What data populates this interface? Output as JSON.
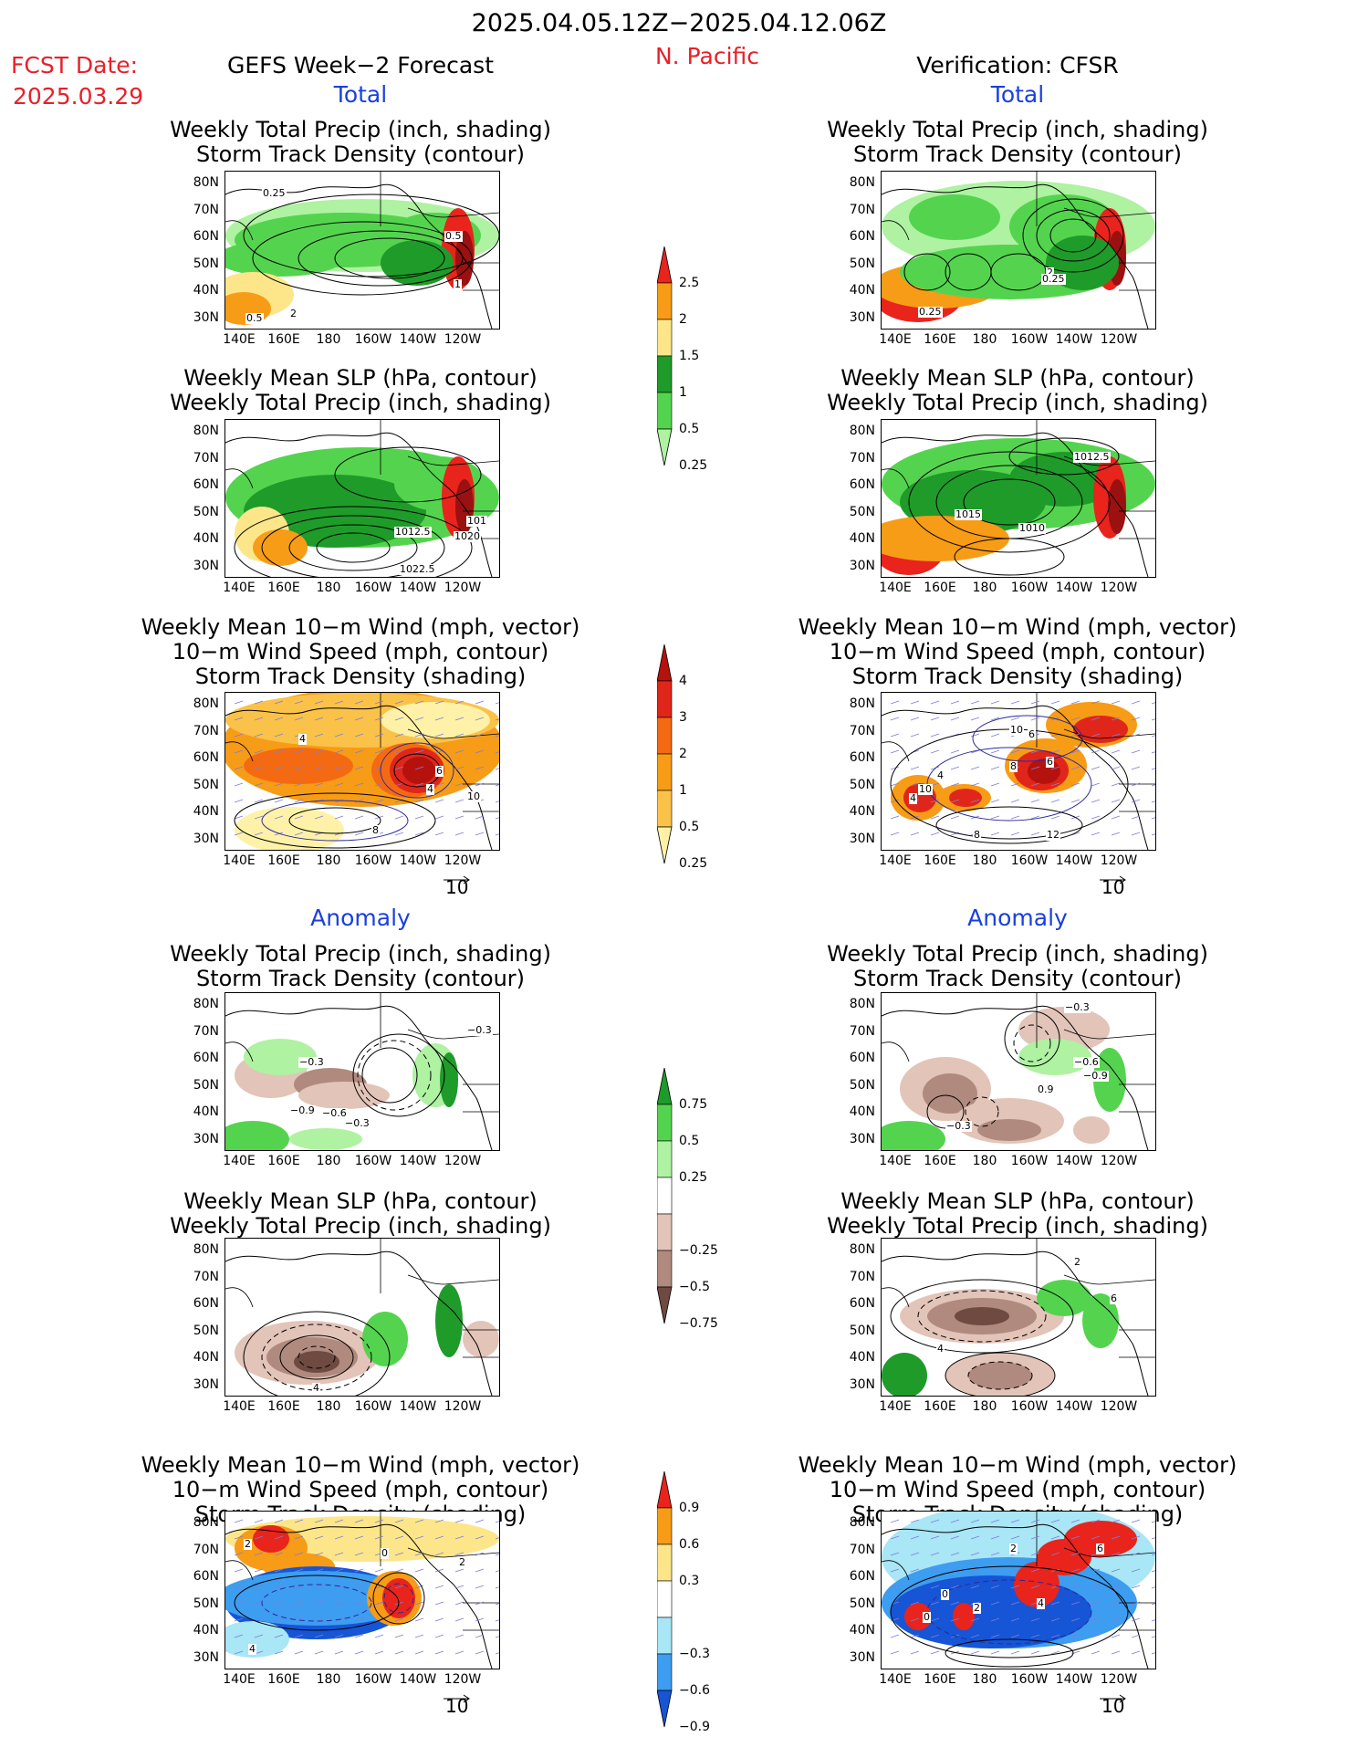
{
  "header": {
    "date_range": "2025.04.05.12Z−2025.04.12.06Z",
    "region": "N. Pacific",
    "fcst_label": "FCST Date:",
    "fcst_date": "2025.03.29",
    "left_model": "GEFS Week−2 Forecast",
    "right_model": "Verification: CFSR"
  },
  "sections": {
    "total": "Total",
    "anomaly": "Anomaly"
  },
  "axes": {
    "lat_ticks": [
      "80N",
      "70N",
      "60N",
      "50N",
      "40N",
      "30N"
    ],
    "lon_ticks": [
      "140E",
      "160E",
      "180",
      "160W",
      "140W",
      "120W"
    ]
  },
  "titles": {
    "precip_storm": [
      "Weekly Total Precip (inch, shading)",
      "Storm Track Density (contour)"
    ],
    "slp_precip": [
      "Weekly Mean SLP (hPa, contour)",
      "Weekly Total Precip (inch, shading)"
    ],
    "wind_storm": [
      "Weekly Mean 10−m Wind (mph, vector)",
      "10−m Wind Speed (mph, contour)",
      "Storm Track Density (shading)"
    ]
  },
  "vector_ref": "10",
  "colorbars": [
    {
      "name": "precip-total",
      "labels": [
        "2.5",
        "2",
        "1.5",
        "1",
        "0.5",
        "0.25"
      ],
      "colors": [
        "#e8241c",
        "#f79c16",
        "#fde68a",
        "#1f9b2a",
        "#54d44e",
        "#aef2a2"
      ]
    },
    {
      "name": "storm-total",
      "labels": [
        "4",
        "3",
        "2",
        "1",
        "0.5",
        "0.25"
      ],
      "colors": [
        "#b5120e",
        "#e0261a",
        "#f46a12",
        "#f79c16",
        "#fbc24a",
        "#fff2a8"
      ]
    },
    {
      "name": "precip-anom",
      "labels": [
        "0.75",
        "0.5",
        "0.25",
        "−0.25",
        "−0.5",
        "−0.75"
      ],
      "colors": [
        "#1f9b2a",
        "#54d44e",
        "#aef2a2",
        "#ffffff",
        "#e2c4b8",
        "#b08a7e",
        "#6e4a40"
      ]
    },
    {
      "name": "storm-anom",
      "labels": [
        "0.9",
        "0.6",
        "0.3",
        "−0.3",
        "−0.6",
        "−0.9"
      ],
      "colors": [
        "#e8241c",
        "#f79c16",
        "#fde68a",
        "#ffffff",
        "#a9e6f6",
        "#3d9df0",
        "#1555d6"
      ]
    }
  ],
  "panels": {
    "left_total_1": {
      "labels": [
        "0.5",
        "1",
        "2",
        "0.5",
        "0.25"
      ]
    },
    "left_total_2": {
      "labels": [
        "1012.5",
        "1020",
        "101",
        "1022.5"
      ]
    },
    "left_total_3": {
      "labels": [
        "4",
        "6",
        "8",
        "4",
        "10"
      ]
    },
    "right_total_1": {
      "labels": [
        "2",
        "0.25",
        "0.25"
      ]
    },
    "right_total_2": {
      "labels": [
        "1012.5",
        "1015",
        "1010"
      ]
    },
    "right_total_3": {
      "labels": [
        "10",
        "6",
        "4",
        "10",
        "8",
        "6",
        "4",
        "8",
        "12"
      ]
    },
    "left_anom_1": {
      "labels": [
        "−0.3",
        "−0.3",
        "−0.9",
        "−0.6",
        "−0.3"
      ]
    },
    "left_anom_2": {
      "labels": [
        "4"
      ]
    },
    "left_anom_3": {
      "labels": [
        "2",
        "0",
        "4",
        "2"
      ]
    },
    "right_anom_1": {
      "labels": [
        "−0.3",
        "−0.6",
        "−0.9",
        "0.9",
        "−0.3"
      ]
    },
    "right_anom_2": {
      "labels": [
        "2",
        "6",
        "4"
      ]
    },
    "right_anom_3": {
      "labels": [
        "2",
        "6",
        "0",
        "4",
        "2",
        "0"
      ]
    }
  }
}
